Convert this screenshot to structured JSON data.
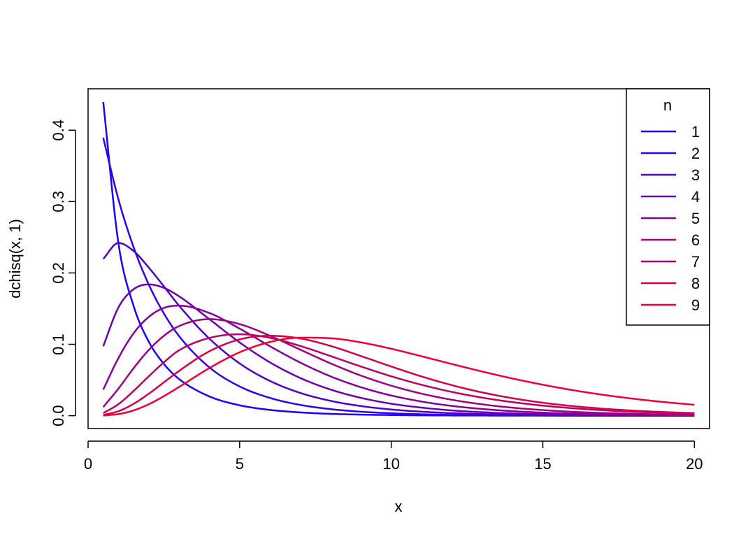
{
  "chart_data": {
    "type": "line",
    "title": "",
    "xlabel": "x",
    "ylabel": "dchisq(x, 1)",
    "xlim": [
      0,
      20.5
    ],
    "ylim": [
      -0.018,
      0.458
    ],
    "x_ticks": [
      "0",
      "5",
      "10",
      "15",
      "20"
    ],
    "y_ticks": [
      "0.0",
      "0.1",
      "0.2",
      "0.3",
      "0.4"
    ],
    "grid": false,
    "legend": {
      "title": "n",
      "position": "top-right"
    },
    "x": [
      0.5,
      1,
      1.5,
      2,
      2.5,
      3,
      4,
      5,
      6,
      7,
      8,
      9,
      10,
      11,
      12,
      13,
      14,
      15,
      16,
      17,
      18,
      19,
      20
    ],
    "series": [
      {
        "name": "1",
        "color": "#1a00ff",
        "values": [
          0.4394,
          0.242,
          0.1539,
          0.1038,
          0.0725,
          0.0514,
          0.027,
          0.0146,
          0.0081,
          0.0046,
          0.0026,
          0.0015,
          0.0009,
          0.0005,
          0.0003,
          0.0002,
          0.0001,
          0.0001,
          0.0,
          0.0,
          0.0,
          0.0,
          0.0
        ]
      },
      {
        "name": "2",
        "color": "#3500e6",
        "values": [
          0.3894,
          0.3033,
          0.2362,
          0.1839,
          0.1433,
          0.1116,
          0.0677,
          0.041,
          0.0249,
          0.0151,
          0.0092,
          0.0056,
          0.0034,
          0.002,
          0.0012,
          0.0008,
          0.0005,
          0.0003,
          0.0002,
          0.0001,
          0.0001,
          0.0,
          0.0
        ]
      },
      {
        "name": "3",
        "color": "#5000cc",
        "values": [
          0.2197,
          0.242,
          0.2308,
          0.2076,
          0.1812,
          0.1542,
          0.108,
          0.0732,
          0.0487,
          0.0319,
          0.0208,
          0.0135,
          0.0087,
          0.0056,
          0.0036,
          0.0023,
          0.0015,
          0.0009,
          0.0006,
          0.0004,
          0.0002,
          0.0002,
          0.0001
        ]
      },
      {
        "name": "4",
        "color": "#6b00b3",
        "values": [
          0.0974,
          0.1516,
          0.1771,
          0.1839,
          0.1791,
          0.1673,
          0.1353,
          0.1026,
          0.0747,
          0.0528,
          0.0366,
          0.025,
          0.0168,
          0.0113,
          0.0074,
          0.0049,
          0.0032,
          0.0021,
          0.0013,
          0.0009,
          0.0006,
          0.0004,
          0.0002
        ]
      },
      {
        "name": "5",
        "color": "#860099",
        "values": [
          0.0366,
          0.0807,
          0.1154,
          0.1384,
          0.151,
          0.1542,
          0.1439,
          0.122,
          0.0973,
          0.0744,
          0.0551,
          0.0399,
          0.0283,
          0.0198,
          0.0137,
          0.0094,
          0.0064,
          0.0043,
          0.0029,
          0.0019,
          0.0013,
          0.0009,
          0.0006
        ]
      },
      {
        "name": "6",
        "color": "#a10080",
        "values": [
          0.0122,
          0.0379,
          0.0665,
          0.092,
          0.1119,
          0.1255,
          0.1353,
          0.1283,
          0.112,
          0.0925,
          0.0733,
          0.0562,
          0.0421,
          0.0309,
          0.0223,
          0.0159,
          0.0112,
          0.0079,
          0.0054,
          0.0038,
          0.0026,
          0.0018,
          0.0012
        ]
      },
      {
        "name": "7",
        "color": "#bc0066",
        "values": [
          0.0037,
          0.0161,
          0.0346,
          0.0551,
          0.0748,
          0.0916,
          0.1089,
          0.1141,
          0.1091,
          0.0977,
          0.0835,
          0.0689,
          0.0552,
          0.0433,
          0.0333,
          0.0253,
          0.019,
          0.0141,
          0.0104,
          0.0076,
          0.0055,
          0.004,
          0.0029
        ]
      },
      {
        "name": "8",
        "color": "#d7004c",
        "values": [
          0.001,
          0.0063,
          0.0166,
          0.0307,
          0.0467,
          0.0627,
          0.0902,
          0.1069,
          0.112,
          0.1082,
          0.0977,
          0.0836,
          0.0689,
          0.055,
          0.0428,
          0.0326,
          0.0245,
          0.0182,
          0.0134,
          0.0098,
          0.0071,
          0.0051,
          0.0037
        ]
      },
      {
        "name": "9",
        "color": "#f20033",
        "values": [
          0.0003,
          0.0022,
          0.0074,
          0.016,
          0.0274,
          0.0402,
          0.0667,
          0.0889,
          0.1033,
          0.1093,
          0.1085,
          0.1027,
          0.0938,
          0.0833,
          0.0724,
          0.0619,
          0.0521,
          0.0434,
          0.0357,
          0.0292,
          0.0237,
          0.0191,
          0.0153
        ]
      }
    ]
  }
}
